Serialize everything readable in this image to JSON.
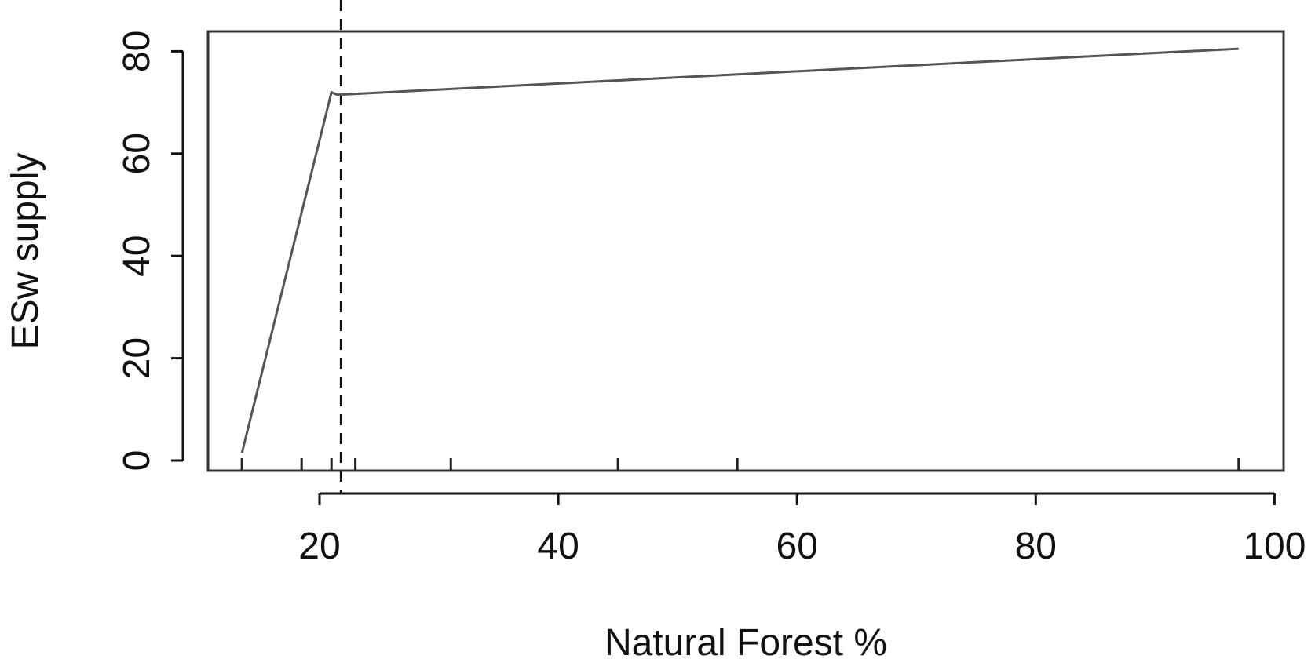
{
  "chart_data": {
    "type": "line",
    "xlabel": "Natural Forest %",
    "ylabel": "ESw supply",
    "xlim": [
      10,
      100
    ],
    "ylim": [
      0,
      82
    ],
    "x_ticks": [
      {
        "value": 20,
        "label": "20"
      },
      {
        "value": 40,
        "label": "40"
      },
      {
        "value": 60,
        "label": "60"
      },
      {
        "value": 80,
        "label": "80"
      },
      {
        "value": 100,
        "label": "100"
      }
    ],
    "y_ticks": [
      {
        "value": 0,
        "label": "0"
      },
      {
        "value": 20,
        "label": "20"
      },
      {
        "value": 40,
        "label": "40"
      },
      {
        "value": 60,
        "label": "60"
      },
      {
        "value": 80,
        "label": "80"
      }
    ],
    "series": [
      {
        "x": [
          13.5,
          21.0,
          21.5,
          97.0
        ],
        "y": [
          1.5,
          72,
          71.5,
          80.5
        ]
      }
    ],
    "threshold_line": {
      "x": 21.8,
      "style": "dashed"
    },
    "rug_x": [
      13.5,
      18.5,
      21.0,
      23.0,
      31.0,
      45.0,
      55.0,
      97.0
    ],
    "grid": false,
    "line_color": "#555555",
    "frame_color": "#333333"
  }
}
